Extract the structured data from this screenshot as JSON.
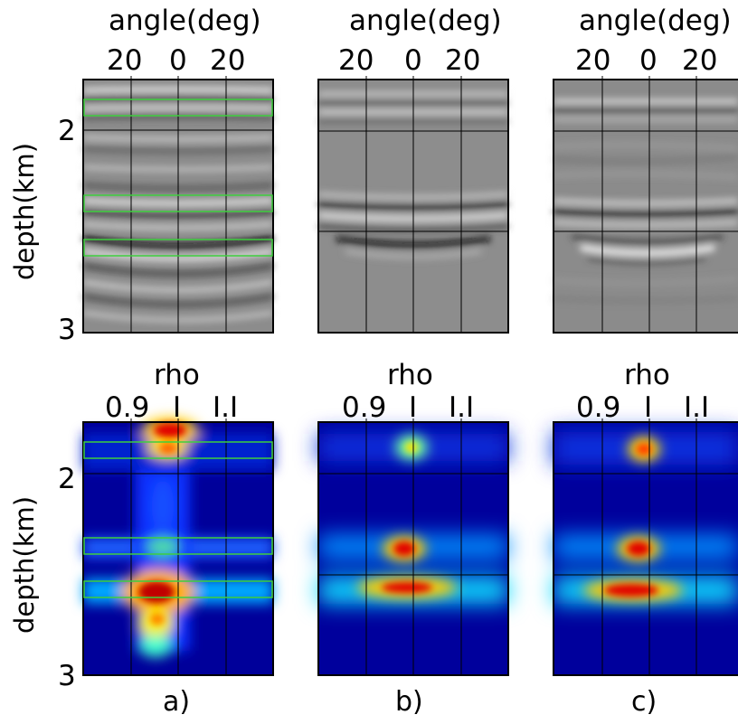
{
  "top_row": {
    "axis_title": "angle(deg)",
    "ticks": [
      "20",
      "0",
      "20"
    ]
  },
  "bottom_row": {
    "axis_title": "rho",
    "ticks": [
      "0.9",
      "I",
      "I.I"
    ]
  },
  "y_axis": {
    "label": "depth(km)",
    "ticks": [
      "2",
      "3"
    ]
  },
  "panel_labels": [
    "a)",
    "b)",
    "c)"
  ],
  "colors": {
    "box_outline": "#3ecf3e",
    "grid": "#000000",
    "colormap": [
      "#00008f",
      "#0000ff",
      "#00ffff",
      "#ffff00",
      "#ff0000",
      "#800000"
    ]
  }
}
